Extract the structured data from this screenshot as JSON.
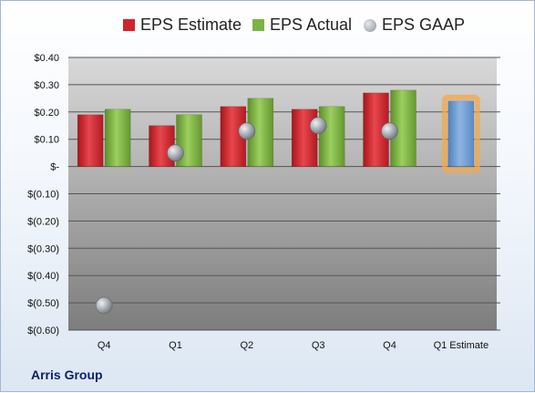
{
  "chart_data": {
    "type": "bar",
    "categories": [
      "Q4",
      "Q1",
      "Q2",
      "Q3",
      "Q4",
      "Q1 Estimate"
    ],
    "series": [
      {
        "name": "EPS Estimate",
        "values": [
          0.19,
          0.15,
          0.22,
          0.21,
          0.27,
          null
        ],
        "color": "#d0242b"
      },
      {
        "name": "EPS Actual",
        "values": [
          0.21,
          0.19,
          0.25,
          0.22,
          0.28,
          null
        ],
        "color": "#7db343"
      },
      {
        "name": "EPS GAAP",
        "values": [
          -0.51,
          0.05,
          0.13,
          0.15,
          0.13,
          null
        ],
        "color": "#9da5ae",
        "marker": "circle"
      }
    ],
    "estimate_bar": {
      "category": "Q1 Estimate",
      "value": 0.24,
      "color": "#6f9fd4",
      "highlight_color": "#f5a84b"
    },
    "ylim": [
      -0.6,
      0.4
    ],
    "y_ticks": [
      0.4,
      0.3,
      0.2,
      0.1,
      0,
      -0.1,
      -0.2,
      -0.3,
      -0.4,
      -0.5,
      -0.6
    ],
    "y_tick_labels": [
      "$0.40",
      "$0.30",
      "$0.20",
      "$0.10",
      "$-",
      "$(0.10)",
      "$(0.20)",
      "$(0.30)",
      "$(0.40)",
      "$(0.50)",
      "$(0.60)"
    ],
    "grid": true,
    "legend_position": "top",
    "company": "Arris Group"
  }
}
